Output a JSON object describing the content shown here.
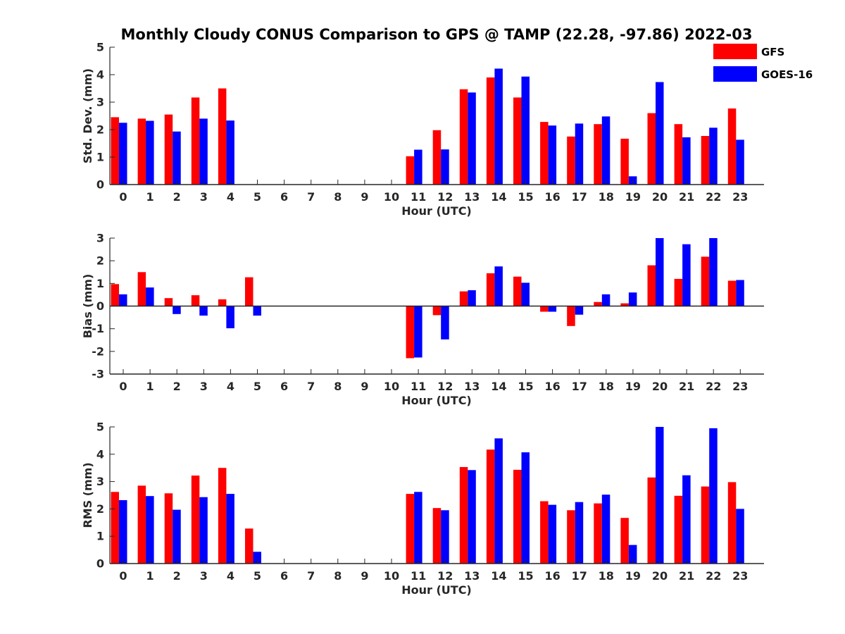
{
  "figure": {
    "title": "Monthly Cloudy CONUS Comparison to GPS @ TAMP (22.28, -97.86) 2022-03",
    "legend": [
      {
        "name": "GFS",
        "color": "#ff0000"
      },
      {
        "name": "GOES-16",
        "color": "#0000ff"
      }
    ],
    "legend_placement": "top-right"
  },
  "chart_data": [
    {
      "type": "bar",
      "title": "Monthly Cloudy CONUS Comparison to GPS @ TAMP (22.28, -97.86) 2022-03",
      "xlabel": "Hour (UTC)",
      "ylabel": "Std. Dev. (mm)",
      "categories": [
        "0",
        "1",
        "2",
        "3",
        "4",
        "5",
        "6",
        "7",
        "8",
        "9",
        "10",
        "11",
        "12",
        "13",
        "14",
        "15",
        "16",
        "17",
        "18",
        "19",
        "20",
        "21",
        "22",
        "23"
      ],
      "ylim": [
        0,
        5
      ],
      "yticks": [
        0,
        1,
        2,
        3,
        4,
        5
      ],
      "grid": false,
      "series": [
        {
          "name": "GFS",
          "color": "#ff0000",
          "values": [
            2.45,
            2.4,
            2.55,
            3.17,
            3.5,
            0,
            0,
            0,
            0,
            0,
            0,
            1.03,
            1.98,
            3.47,
            3.9,
            3.17,
            2.28,
            1.75,
            2.2,
            1.67,
            2.6,
            2.2,
            1.77,
            2.77
          ]
        },
        {
          "name": "GOES-16",
          "color": "#0000ff",
          "values": [
            2.25,
            2.32,
            1.93,
            2.4,
            2.33,
            0,
            0,
            0,
            0,
            0,
            0,
            1.27,
            1.28,
            3.35,
            4.22,
            3.93,
            2.15,
            2.22,
            2.48,
            0.3,
            3.73,
            1.72,
            2.07,
            1.63
          ]
        }
      ]
    },
    {
      "type": "bar",
      "xlabel": "Hour (UTC)",
      "ylabel": "Bias (mm)",
      "categories": [
        "0",
        "1",
        "2",
        "3",
        "4",
        "5",
        "6",
        "7",
        "8",
        "9",
        "10",
        "11",
        "12",
        "13",
        "14",
        "15",
        "16",
        "17",
        "18",
        "19",
        "20",
        "21",
        "22",
        "23"
      ],
      "ylim": [
        -3,
        3
      ],
      "yticks": [
        -3,
        -2,
        -1,
        0,
        1,
        2,
        3
      ],
      "grid": false,
      "series": [
        {
          "name": "GFS",
          "color": "#ff0000",
          "values": [
            0.97,
            1.5,
            0.35,
            0.48,
            0.3,
            1.27,
            0,
            0,
            0,
            0,
            0,
            -2.3,
            -0.4,
            0.65,
            1.45,
            1.3,
            -0.25,
            -0.88,
            0.18,
            0.12,
            1.8,
            1.2,
            2.18,
            1.12
          ]
        },
        {
          "name": "GOES-16",
          "color": "#0000ff",
          "values": [
            0.52,
            0.82,
            -0.35,
            -0.42,
            -0.98,
            -0.42,
            0,
            0,
            0,
            0,
            0,
            -2.27,
            -1.47,
            0.7,
            1.75,
            1.03,
            -0.25,
            -0.38,
            0.52,
            0.6,
            3.0,
            2.73,
            3.0,
            1.15
          ]
        }
      ]
    },
    {
      "type": "bar",
      "xlabel": "Hour (UTC)",
      "ylabel": "RMS (mm)",
      "categories": [
        "0",
        "1",
        "2",
        "3",
        "4",
        "5",
        "6",
        "7",
        "8",
        "9",
        "10",
        "11",
        "12",
        "13",
        "14",
        "15",
        "16",
        "17",
        "18",
        "19",
        "20",
        "21",
        "22",
        "23"
      ],
      "ylim": [
        0,
        5
      ],
      "yticks": [
        0,
        1,
        2,
        3,
        4,
        5
      ],
      "grid": false,
      "series": [
        {
          "name": "GFS",
          "color": "#ff0000",
          "values": [
            2.62,
            2.85,
            2.57,
            3.22,
            3.5,
            1.28,
            0,
            0,
            0,
            0,
            0,
            2.55,
            2.03,
            3.53,
            4.17,
            3.43,
            2.28,
            1.95,
            2.2,
            1.67,
            3.15,
            2.48,
            2.82,
            2.98
          ]
        },
        {
          "name": "GOES-16",
          "color": "#0000ff",
          "values": [
            2.32,
            2.47,
            1.97,
            2.43,
            2.55,
            0.43,
            0,
            0,
            0,
            0,
            0,
            2.62,
            1.95,
            3.42,
            4.58,
            4.07,
            2.15,
            2.25,
            2.52,
            0.68,
            5.0,
            3.23,
            4.95,
            2.0
          ]
        }
      ]
    }
  ]
}
